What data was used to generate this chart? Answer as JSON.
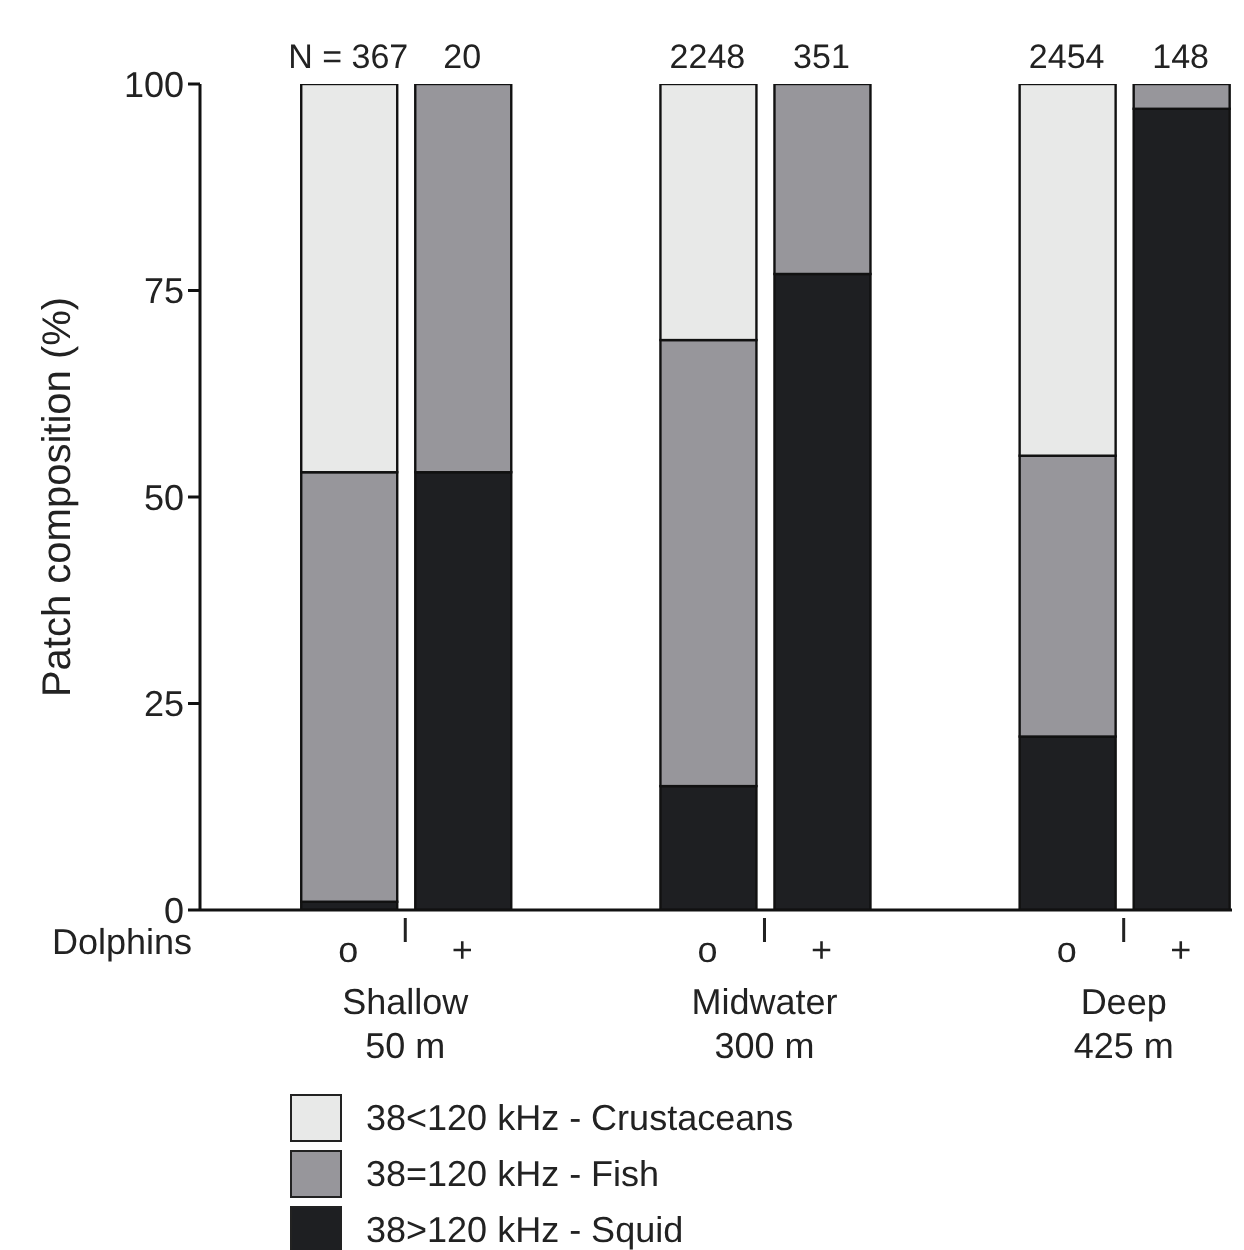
{
  "chart_data": {
    "type": "bar",
    "stacked": true,
    "ylabel": "Patch composition (%)",
    "xlabel": "Dolphins",
    "categories": [
      "o",
      "+",
      "o",
      "+",
      "o",
      "+"
    ],
    "series": [
      {
        "name": "38>120 kHz - Squid",
        "color": "#1e1f22",
        "values": [
          1,
          53,
          15,
          77,
          21,
          97
        ]
      },
      {
        "name": "38=120 kHz - Fish",
        "color": "#97969b",
        "values": [
          52,
          47,
          54,
          23,
          34,
          3
        ]
      },
      {
        "name": "38<120 kHz - Crustaceans",
        "color": "#e8e9e8",
        "values": [
          47,
          0,
          31,
          0,
          45,
          0
        ]
      }
    ],
    "annotations": [
      "N =  367",
      "20",
      "2248",
      "351",
      "2454",
      "148",
      "Shallow\n50 m",
      "Midwater\n300 m",
      "Deep\n425 m"
    ],
    "ylim": [
      0,
      100
    ],
    "yticks": [
      0,
      25,
      50,
      75,
      100
    ],
    "grid": false,
    "legend": "bottom"
  }
}
